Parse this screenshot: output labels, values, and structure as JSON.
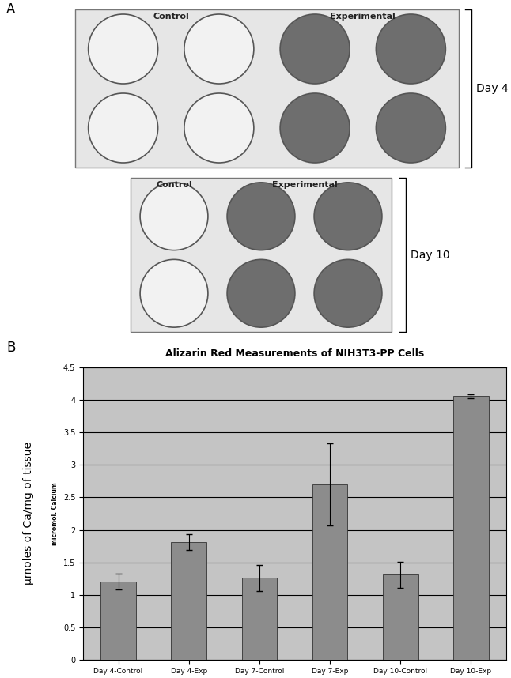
{
  "panel_a": {
    "label": "A",
    "groups": [
      {
        "control": "Control",
        "experimental": "Experimental",
        "day": "Day 4"
      },
      {
        "control": "Control",
        "experimental": "Experimental",
        "day": "Day 10"
      }
    ]
  },
  "panel_b_label": "B",
  "chart_data": {
    "type": "bar",
    "title": "Alizarin Red Measurements of NIH3T3-PP Cells",
    "y_label": "µmoles of Ca/mg of tissue",
    "y_sublabel": "micromol. Calcium",
    "categories": [
      "Day 4-Control",
      "Day 4-Exp",
      "Day 7-Control",
      "Day 7-Exp",
      "Day 10-Control",
      "Day 10-Exp"
    ],
    "values": [
      1.2,
      1.81,
      1.26,
      2.7,
      1.31,
      4.06
    ],
    "errors": [
      0.12,
      0.12,
      0.2,
      0.63,
      0.2,
      0.03
    ],
    "color": "#8c8c8c",
    "ylim": [
      0,
      4.5
    ],
    "yticks": [
      0,
      0.5,
      1,
      1.5,
      2,
      2.5,
      3,
      3.5,
      4,
      4.5
    ],
    "grid": true
  }
}
